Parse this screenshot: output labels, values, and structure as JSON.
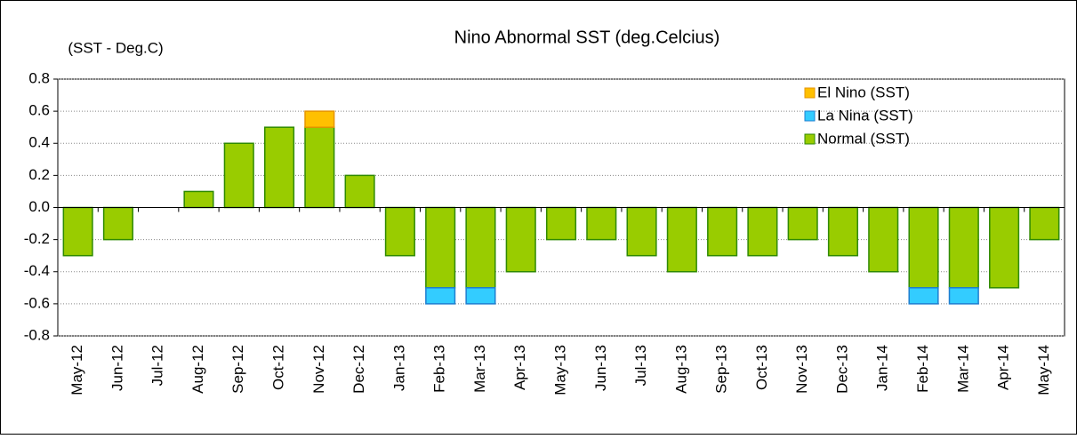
{
  "chart_data": {
    "type": "stacked-bar",
    "title": "Nino Abnormal SST (deg.Celcius)",
    "y_label": "(SST - Deg.C)",
    "categories": [
      "May-12",
      "Jun-12",
      "Jul-12",
      "Aug-12",
      "Sep-12",
      "Oct-12",
      "Nov-12",
      "Dec-12",
      "Jan-13",
      "Feb-13",
      "Mar-13",
      "Apr-13",
      "May-13",
      "Jun-13",
      "Jul-13",
      "Aug-13",
      "Sep-13",
      "Oct-13",
      "Nov-13",
      "Dec-13",
      "Jan-14",
      "Feb-14",
      "Mar-14",
      "Apr-14",
      "May-14"
    ],
    "series": [
      {
        "name": "El Nino (SST)",
        "color": "#ffc000",
        "stroke": "#e69500",
        "values": [
          null,
          null,
          null,
          null,
          null,
          null,
          0.1,
          null,
          null,
          null,
          null,
          null,
          null,
          null,
          null,
          null,
          null,
          null,
          null,
          null,
          null,
          null,
          null,
          null,
          null
        ]
      },
      {
        "name": "La Nina (SST)",
        "color": "#33ccff",
        "stroke": "#1f7fd0",
        "values": [
          null,
          null,
          null,
          null,
          null,
          null,
          null,
          null,
          null,
          -0.1,
          -0.1,
          null,
          null,
          null,
          null,
          null,
          null,
          null,
          null,
          null,
          null,
          -0.1,
          -0.1,
          null,
          null
        ]
      },
      {
        "name": "Normal (SST)",
        "color": "#99cc00",
        "stroke": "#2f8a00",
        "values": [
          -0.3,
          -0.2,
          0,
          0.1,
          0.4,
          0.5,
          0.5,
          0.2,
          -0.3,
          -0.5,
          -0.5,
          -0.4,
          -0.2,
          -0.2,
          -0.3,
          -0.4,
          -0.3,
          -0.3,
          -0.2,
          -0.3,
          -0.4,
          -0.5,
          -0.5,
          -0.5,
          -0.2
        ]
      }
    ],
    "ylim": [
      -0.8,
      0.8
    ],
    "yticks": [
      0.8,
      0.6,
      0.4,
      0.2,
      {
        "value": 0,
        "label": "0.0"
      },
      -0.2,
      -0.4,
      -0.6,
      -0.8
    ],
    "grid": true,
    "legend": "top-right"
  }
}
